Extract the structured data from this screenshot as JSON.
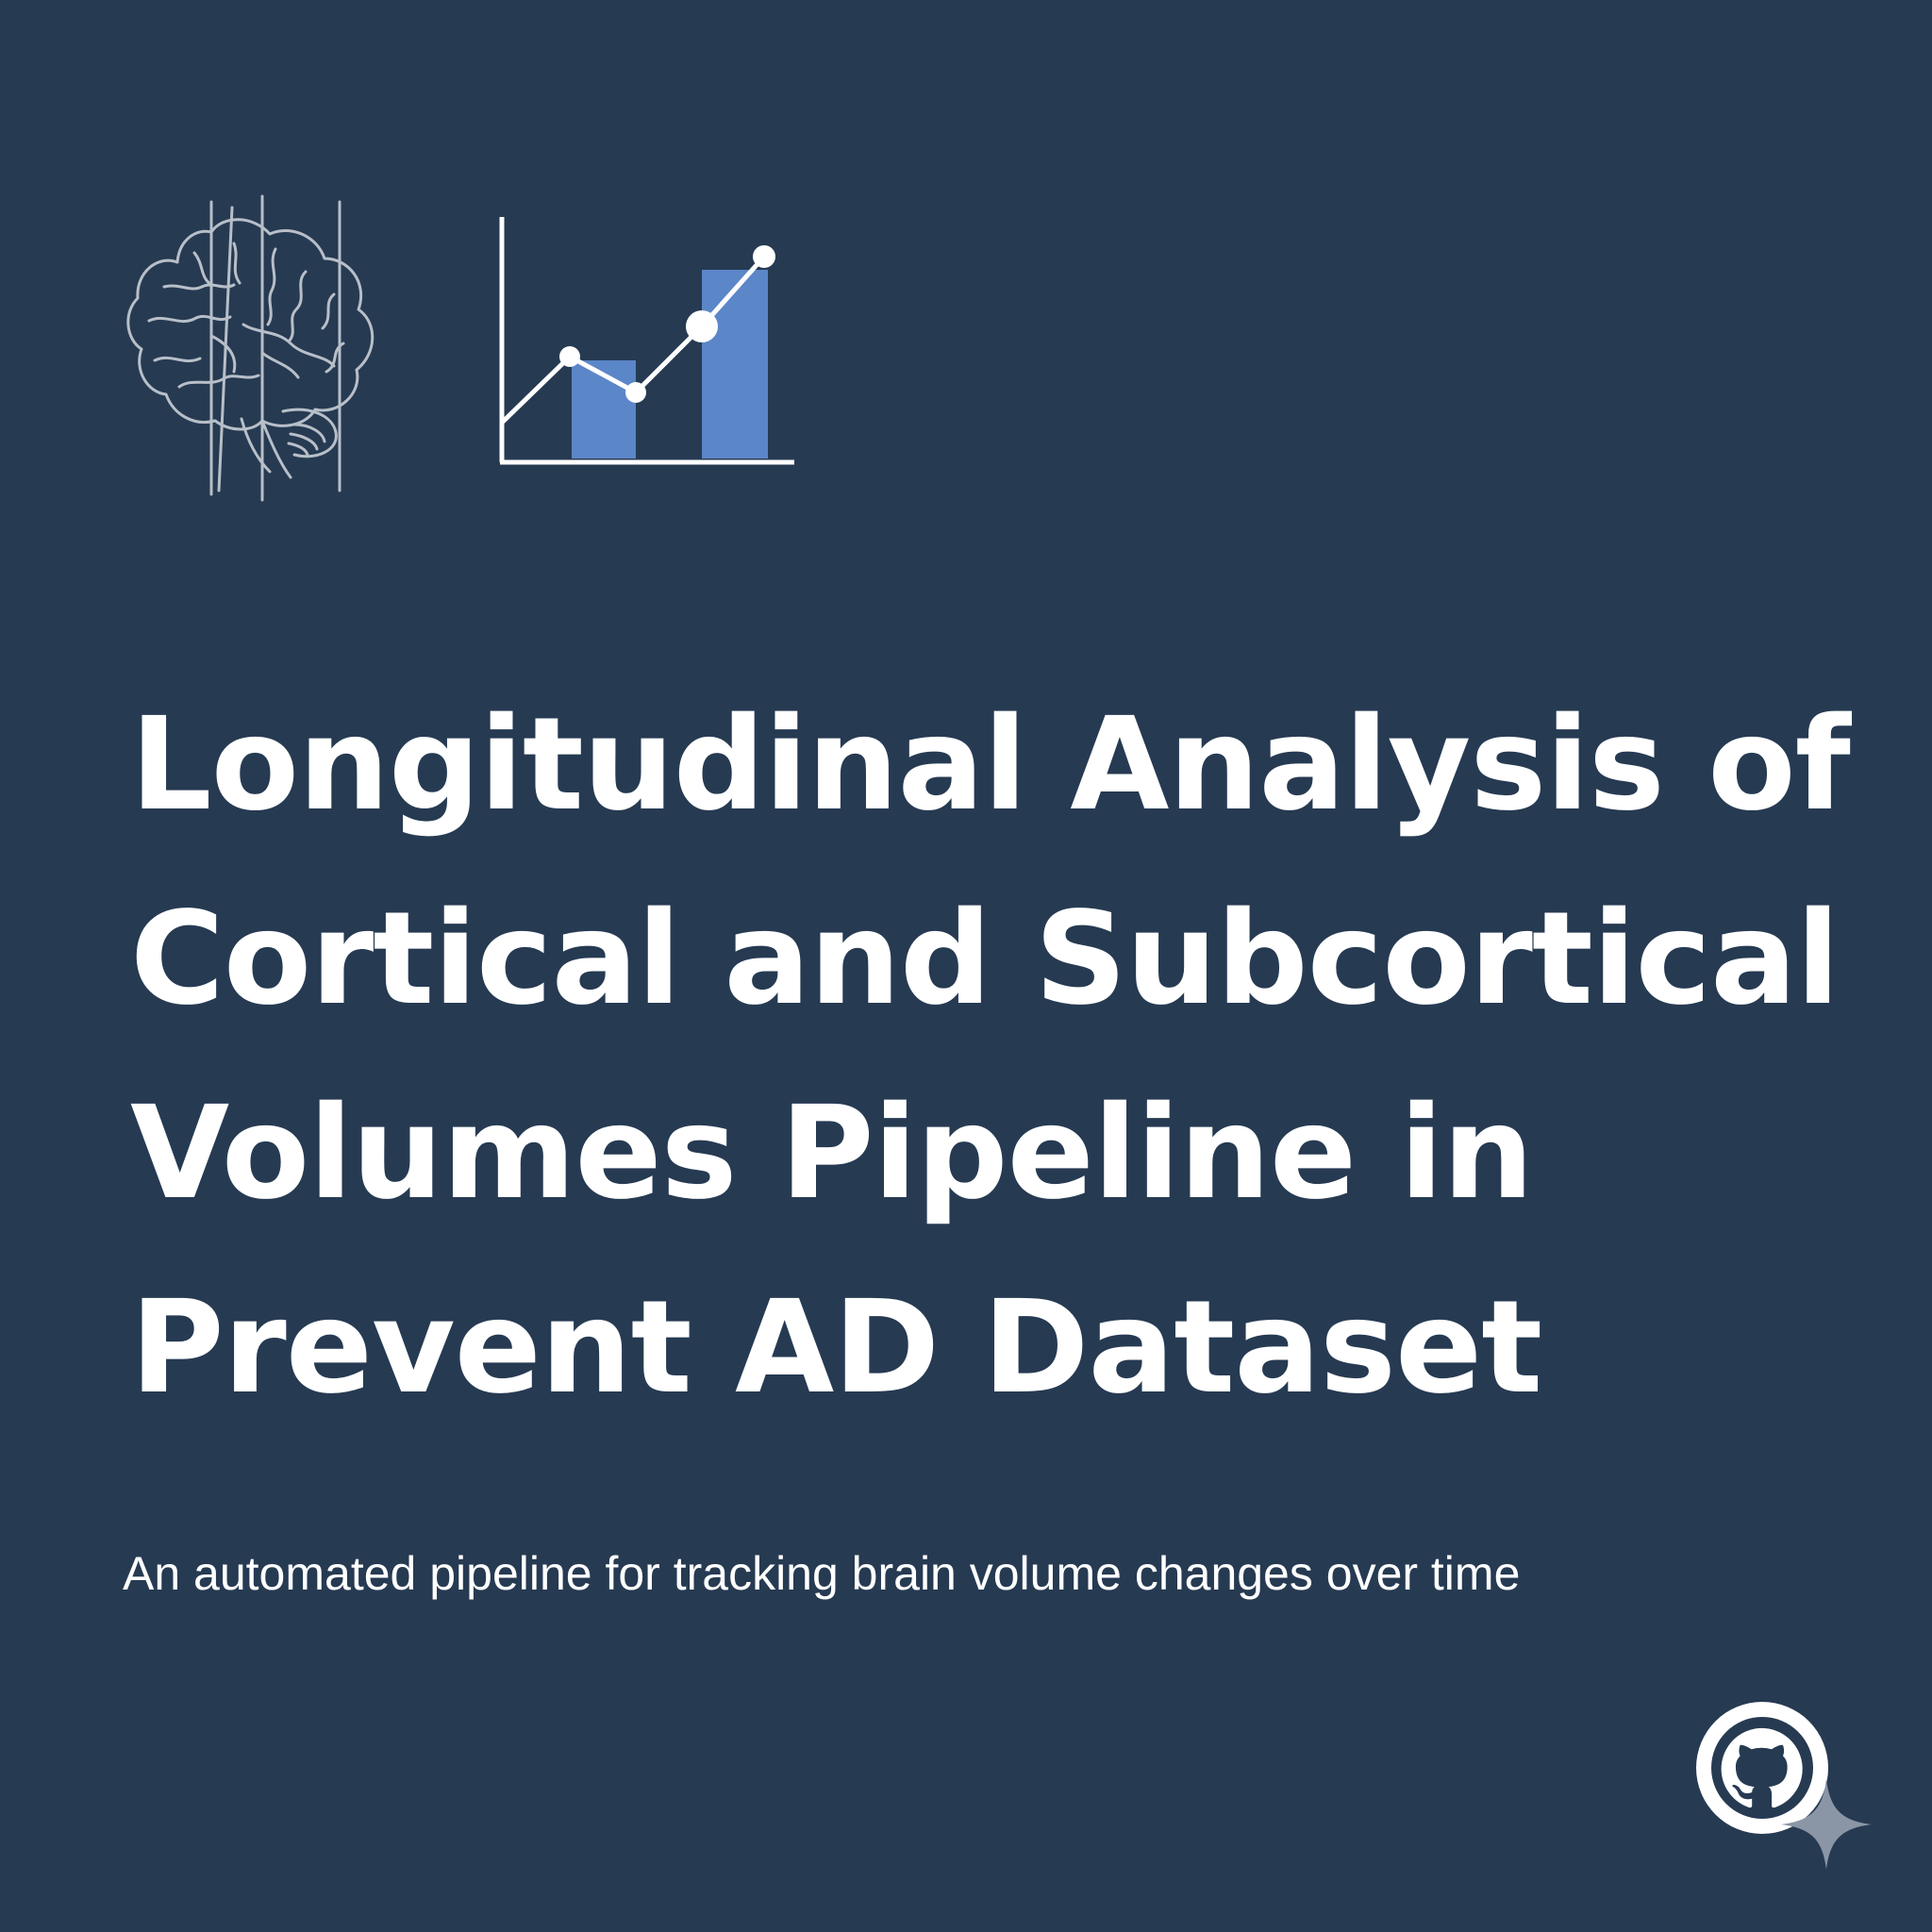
{
  "title": {
    "lines": [
      "Longitudinal Analysis of",
      "Cortical and Subcortical",
      "Volumes Pipeline in",
      "Prevent AD Dataset"
    ]
  },
  "subtitle": "An automated pipeline for tracking brain volume changes over time",
  "icons": {
    "brain": "brain-outline-icon",
    "chart": "bar-line-chart-icon",
    "github": "github-icon",
    "sparkle": "sparkle-icon"
  },
  "colors": {
    "background": "#263a52",
    "text": "#ffffff",
    "accent_bar": "#5b86c8",
    "icon_stroke": "#b8bfc8",
    "sparkle": "#8a96a6"
  }
}
